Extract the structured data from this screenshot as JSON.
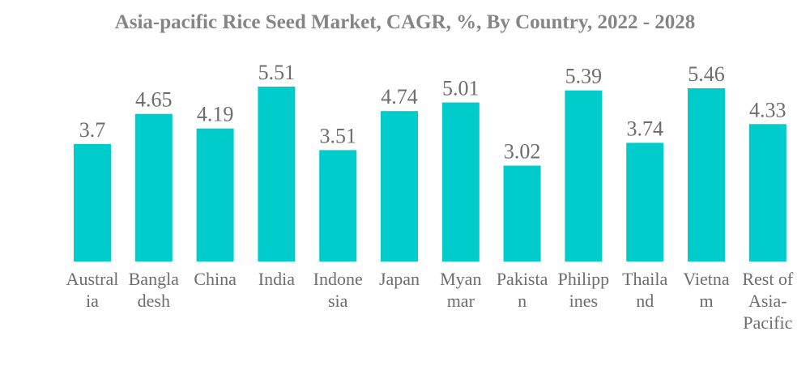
{
  "chart_data": {
    "type": "bar",
    "title": "Asia-pacific Rice Seed Market, CAGR, %, By Country, 2022 - 2028",
    "xlabel": "",
    "ylabel": "",
    "grid": false,
    "legend": "none",
    "ylim": [
      0,
      5.51
    ],
    "bar_color": "#00cccc",
    "categories": [
      "Australia",
      "Bangladesh",
      "China",
      "India",
      "Indonesia",
      "Japan",
      "Myanmar",
      "Pakistan",
      "Philippines",
      "Thailand",
      "Vietnam",
      "Rest of Asia-Pacific"
    ],
    "category_label_lines": [
      [
        "Austral",
        "ia"
      ],
      [
        "Bangla",
        "desh"
      ],
      [
        "China"
      ],
      [
        "India"
      ],
      [
        "Indone",
        "sia"
      ],
      [
        "Japan"
      ],
      [
        "Myan",
        "mar"
      ],
      [
        "Pakista",
        "n"
      ],
      [
        "Philipp",
        "ines"
      ],
      [
        "Thaila",
        "nd"
      ],
      [
        "Vietna",
        "m"
      ],
      [
        "Rest of",
        "Asia-",
        "Pacific"
      ]
    ],
    "values": [
      3.7,
      4.65,
      4.19,
      5.51,
      3.51,
      4.74,
      5.01,
      3.02,
      5.39,
      3.74,
      5.46,
      4.33
    ],
    "value_labels": [
      "3.7",
      "4.65",
      "4.19",
      "5.51",
      "3.51",
      "4.74",
      "5.01",
      "3.02",
      "5.39",
      "3.74",
      "5.46",
      "4.33"
    ]
  }
}
